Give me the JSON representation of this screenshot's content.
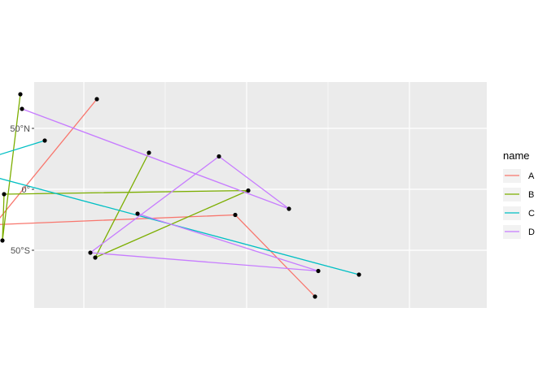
{
  "chart_data": {
    "type": "line",
    "title": "",
    "xlabel": "",
    "ylabel": "",
    "xlim": [
      -160,
      160
    ],
    "ylim": [
      -97,
      88
    ],
    "y_ticks": [
      {
        "value": 50,
        "label": "50°N"
      },
      {
        "value": 0,
        "label": "0°"
      },
      {
        "value": -50,
        "label": "50°S"
      }
    ],
    "x_major_grid": [
      -100,
      0,
      100
    ],
    "x_minor_grid": [
      -150,
      -50,
      50,
      150
    ],
    "grid": true,
    "legend": {
      "title": "name",
      "placement": "right",
      "entries": [
        "A",
        "B",
        "C",
        "D"
      ]
    },
    "series": [
      {
        "name": "A",
        "color": "#F8766D",
        "points": [
          [
            -92,
            74
          ],
          [
            -155,
            -29
          ],
          [
            -7,
            -21
          ],
          [
            42,
            -88
          ]
        ]
      },
      {
        "name": "B",
        "color": "#7CAE00",
        "points": [
          [
            -139,
            78
          ],
          [
            -150,
            -42
          ],
          [
            -149,
            -4
          ],
          [
            1,
            -1
          ],
          [
            -93,
            -56
          ],
          [
            -60,
            30
          ]
        ]
      },
      {
        "name": "C",
        "color": "#00BFC4",
        "points": [
          [
            -124,
            40
          ],
          [
            -177,
            18
          ],
          [
            69,
            -70
          ]
        ]
      },
      {
        "name": "D",
        "color": "#C77CFF",
        "points": [
          [
            -138,
            66
          ],
          [
            26,
            -16
          ],
          [
            -17,
            27
          ],
          [
            -96,
            -52
          ],
          [
            44,
            -67
          ],
          [
            -67,
            -20
          ]
        ]
      }
    ]
  }
}
